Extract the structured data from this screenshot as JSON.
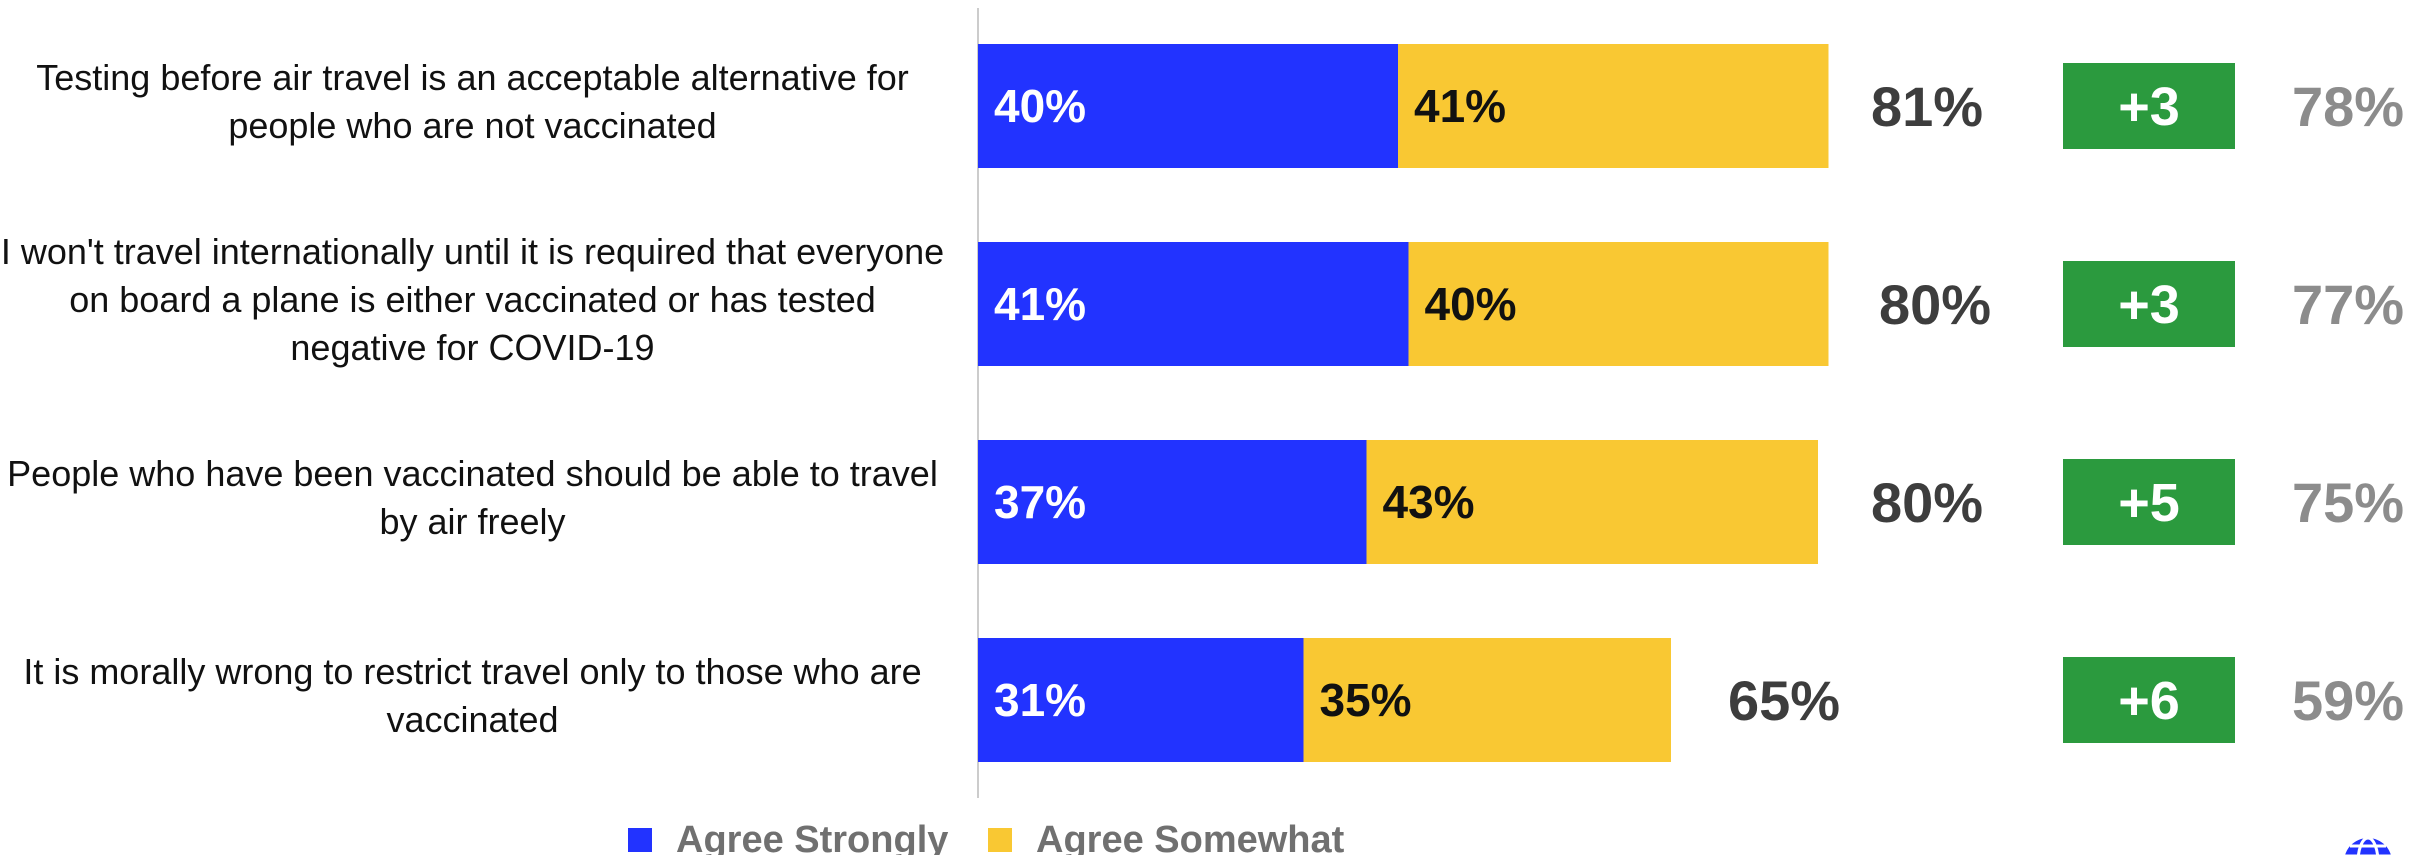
{
  "chart_data": {
    "type": "bar",
    "orientation": "horizontal",
    "stacked": true,
    "categories": [
      "Testing before air travel is an acceptable alternative for people who are not vaccinated",
      "I won't travel internationally until it is required that everyone on board a plane is either vaccinated or has tested negative for COVID-19",
      "People who have been vaccinated should be able to travel by air freely",
      "It is morally wrong to restrict travel only to those who are vaccinated"
    ],
    "series": [
      {
        "name": "Agree Strongly",
        "values": [
          40,
          41,
          37,
          31
        ],
        "color": "#2233ff"
      },
      {
        "name": "Agree Somewhat",
        "values": [
          41,
          40,
          43,
          35
        ],
        "color": "#f9c833"
      }
    ],
    "totals": [
      "81%",
      "80%",
      "80%",
      "65%"
    ],
    "change": [
      "+3",
      "+3",
      "+5",
      "+6"
    ],
    "previous": [
      "78%",
      "77%",
      "75%",
      "59%"
    ],
    "legend_position": "bottom",
    "colors": {
      "change_badge": "#2b9a3e",
      "total_text": "#3d3d3d",
      "previous_text": "#8c8c8c",
      "axis_line": "#cccccc"
    }
  }
}
